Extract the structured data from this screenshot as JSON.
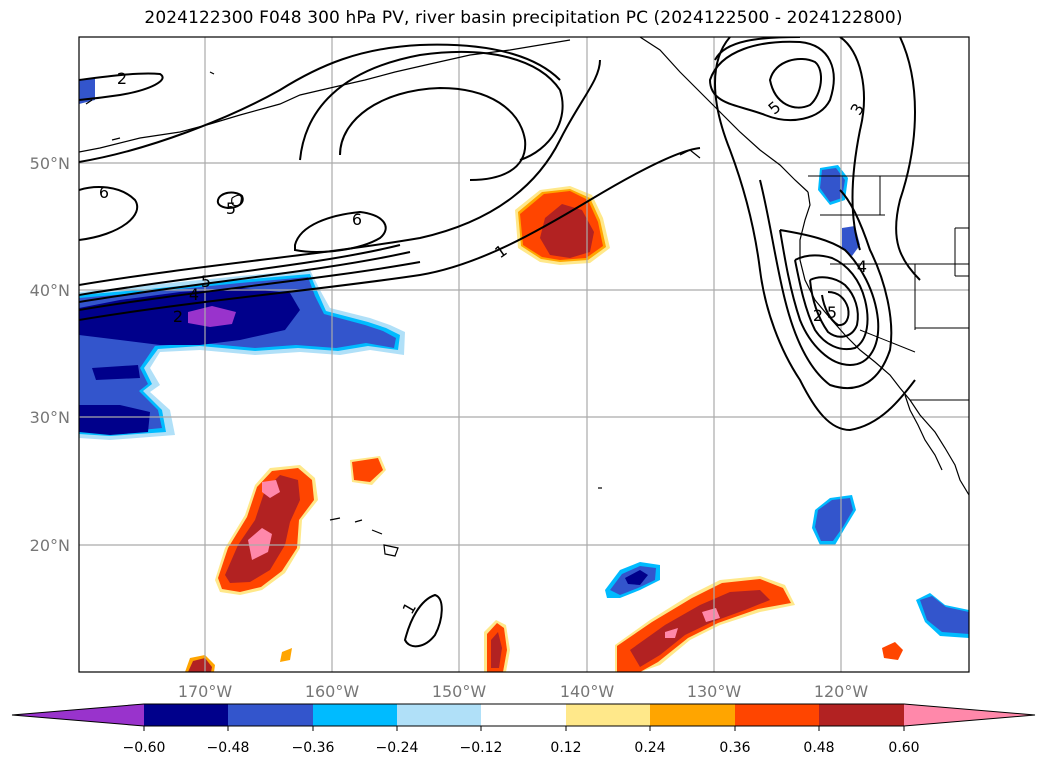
{
  "title": "2024122300 F048 300 hPa PV, river basin precipitation PC (2024122500 - 2024122800)",
  "lat_labels": [
    "50°N",
    "40°N",
    "30°N",
    "20°N"
  ],
  "lon_labels": [
    "170°W",
    "160°W",
    "150°W",
    "140°W",
    "130°W",
    "120°W"
  ],
  "colorbar": {
    "ticks": [
      "−0.60",
      "−0.48",
      "−0.36",
      "−0.24",
      "−0.12",
      "0.12",
      "0.24",
      "0.36",
      "0.48",
      "0.60"
    ],
    "colors": [
      "#9933cc",
      "#00008b",
      "#3355cc",
      "#00bbff",
      "#b0e0f8",
      "#ffffff",
      "#ffe88a",
      "#ffa500",
      "#ff4500",
      "#b22222",
      "#ff88aa"
    ]
  },
  "contour_labels": [
    "2",
    "6",
    "5",
    "6",
    "5",
    "4",
    "2",
    "1",
    "1",
    "5",
    "3",
    "4",
    "2",
    "5"
  ]
}
